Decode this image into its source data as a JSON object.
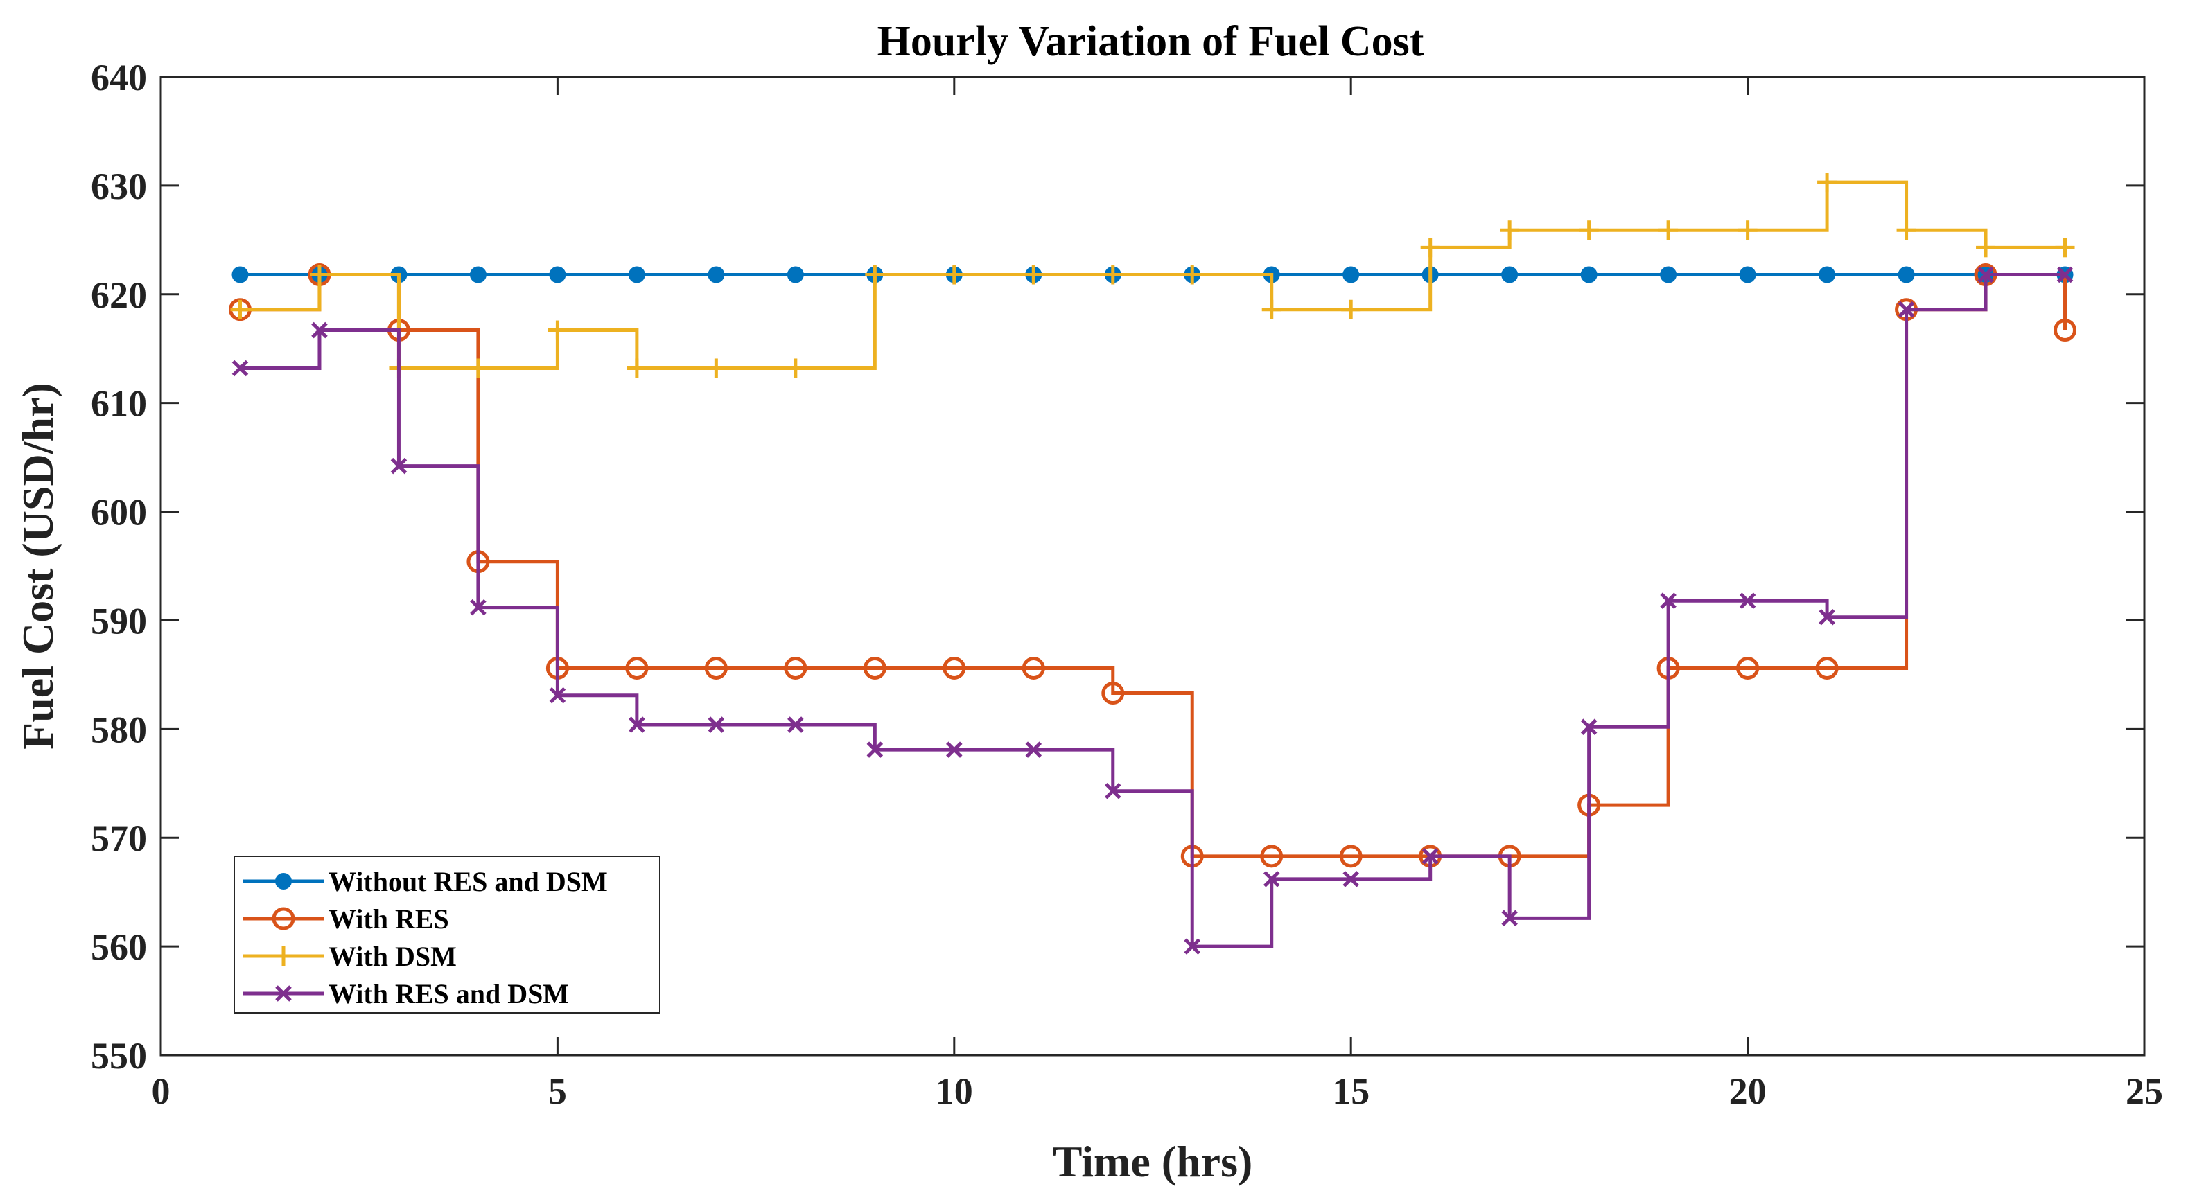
{
  "chart_data": {
    "type": "line",
    "title": "Hourly Variation of Fuel Cost",
    "xlabel": "Time (hrs)",
    "ylabel": "Fuel Cost (USD/hr)",
    "xlim": [
      0,
      25
    ],
    "ylim": [
      550,
      640
    ],
    "xticks": [
      0,
      5,
      10,
      15,
      20,
      25
    ],
    "yticks": [
      550,
      560,
      570,
      580,
      590,
      600,
      610,
      620,
      630,
      640
    ],
    "grid": false,
    "legend_position": "bottom-left",
    "step": true,
    "x": [
      1,
      2,
      3,
      4,
      5,
      6,
      7,
      8,
      9,
      10,
      11,
      12,
      13,
      14,
      15,
      16,
      17,
      18,
      19,
      20,
      21,
      22,
      23,
      24
    ],
    "series": [
      {
        "name": "Without RES and DSM",
        "color": "#0072BD",
        "marker": "dot",
        "values": [
          621.8,
          621.8,
          621.8,
          621.8,
          621.8,
          621.8,
          621.8,
          621.8,
          621.8,
          621.8,
          621.8,
          621.8,
          621.8,
          621.8,
          621.8,
          621.8,
          621.8,
          621.8,
          621.8,
          621.8,
          621.8,
          621.8,
          621.8,
          621.8
        ]
      },
      {
        "name": "With RES",
        "color": "#D95319",
        "marker": "circle",
        "values": [
          618.6,
          621.8,
          616.7,
          595.4,
          585.6,
          585.6,
          585.6,
          585.6,
          585.6,
          585.6,
          585.6,
          583.3,
          568.3,
          568.3,
          568.3,
          568.3,
          568.3,
          573.0,
          585.6,
          585.6,
          585.6,
          618.6,
          621.8,
          616.7
        ]
      },
      {
        "name": "With DSM",
        "color": "#EDB120",
        "marker": "plus",
        "values": [
          618.6,
          621.8,
          613.2,
          613.2,
          616.7,
          613.2,
          613.2,
          613.2,
          621.8,
          621.8,
          621.8,
          621.8,
          621.8,
          618.6,
          618.6,
          624.3,
          625.9,
          625.9,
          625.9,
          625.9,
          630.3,
          625.9,
          624.3,
          624.3
        ]
      },
      {
        "name": "With RES and DSM",
        "color": "#7E2F8E",
        "marker": "x",
        "values": [
          613.2,
          616.7,
          604.2,
          591.2,
          583.1,
          580.4,
          580.4,
          580.4,
          578.1,
          578.1,
          578.1,
          574.3,
          560.0,
          566.2,
          566.2,
          568.3,
          562.6,
          580.2,
          591.8,
          591.8,
          590.3,
          618.6,
          621.8,
          621.8
        ]
      }
    ]
  }
}
